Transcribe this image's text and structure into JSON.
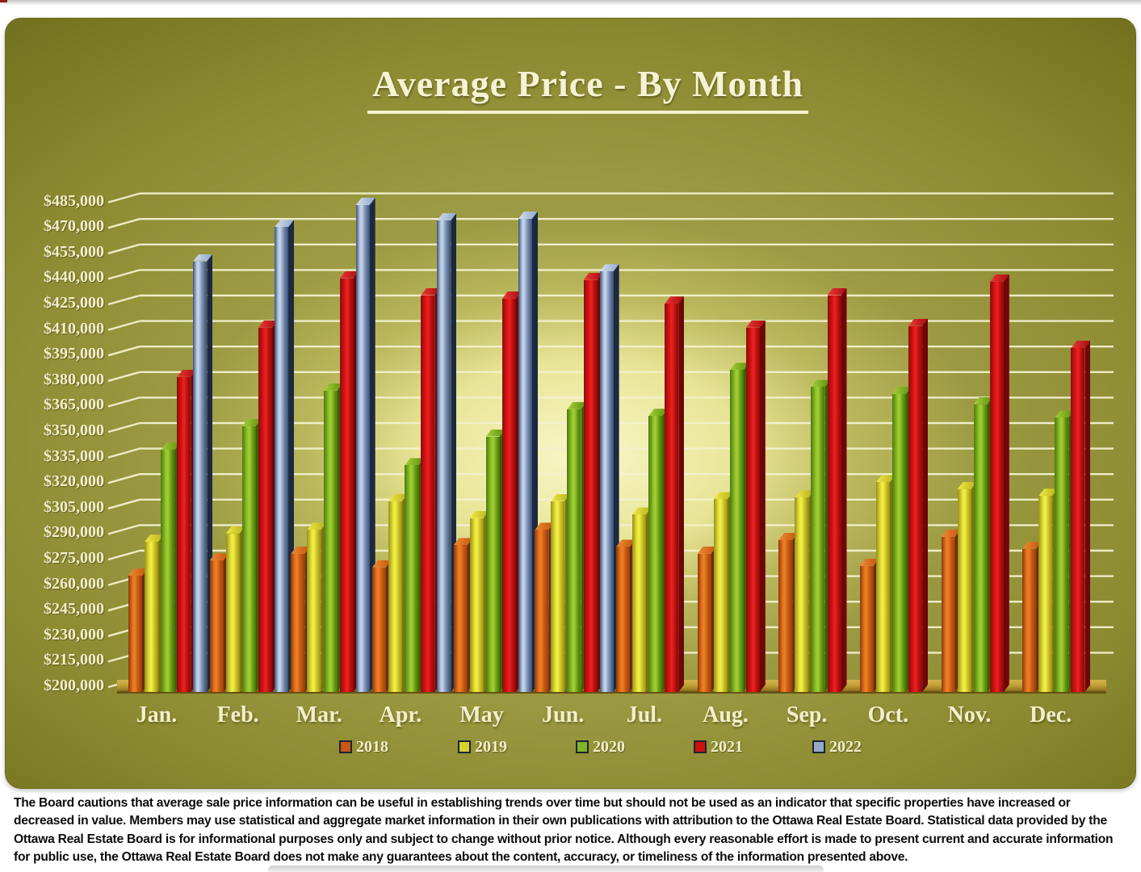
{
  "page_title": "Average Price - By Month",
  "chart_data": {
    "type": "bar",
    "title": "Average Price - By Month",
    "xlabel": "",
    "ylabel": "",
    "categories": [
      "Jan.",
      "Feb.",
      "Mar.",
      "Apr.",
      "May",
      "Jun.",
      "Jul.",
      "Aug.",
      "Sep.",
      "Oct.",
      "Nov.",
      "Dec."
    ],
    "series": [
      {
        "name": "2018",
        "color": "#cb5616",
        "values": [
          263000,
          272000,
          276000,
          268000,
          281000,
          290000,
          280000,
          276000,
          284000,
          269000,
          286000,
          279000
        ]
      },
      {
        "name": "2019",
        "color": "#d6d22e",
        "values": [
          283000,
          288000,
          290000,
          307000,
          297000,
          307000,
          299000,
          308000,
          309000,
          318000,
          314000,
          310000
        ]
      },
      {
        "name": "2020",
        "color": "#7fb424",
        "values": [
          337000,
          351000,
          372000,
          328000,
          345000,
          361000,
          357000,
          384000,
          374000,
          370000,
          364000,
          356000
        ]
      },
      {
        "name": "2021",
        "color": "#cc1111",
        "values": [
          380000,
          409000,
          438000,
          428000,
          426000,
          437000,
          423000,
          409000,
          428000,
          410000,
          436000,
          397000
        ]
      },
      {
        "name": "2022",
        "color": "#93a9c6",
        "values": [
          448000,
          468000,
          481000,
          472000,
          473000,
          442000,
          null,
          null,
          null,
          null,
          null,
          null
        ]
      }
    ],
    "ylim": [
      200000,
      485000
    ],
    "ytick_step": 15000,
    "ytick_format": "$#,###",
    "grid": true,
    "legend_position": "bottom",
    "style": "3d-columns",
    "background_color": "#8b8a31",
    "grid_color": "#f2f0cd",
    "label_color": "#f3efcd",
    "floor_color": "#c3a238"
  },
  "footer": {
    "disclaimer": "The Board cautions that average sale price information can be useful in establishing trends over time but should not be used as an indicator that specific properties have increased or decreased in value.  Members may use statistical and aggregate market information in their own publications with attribution to the Ottawa Real Estate Board. Statistical data provided by the Ottawa Real Estate Board is for informational purposes only and subject to change without prior notice. Although every reasonable effort is made to present current and accurate information for public use, the Ottawa Real Estate Board does not make any guarantees about the content, accuracy, or timeliness of the information presented above."
  }
}
